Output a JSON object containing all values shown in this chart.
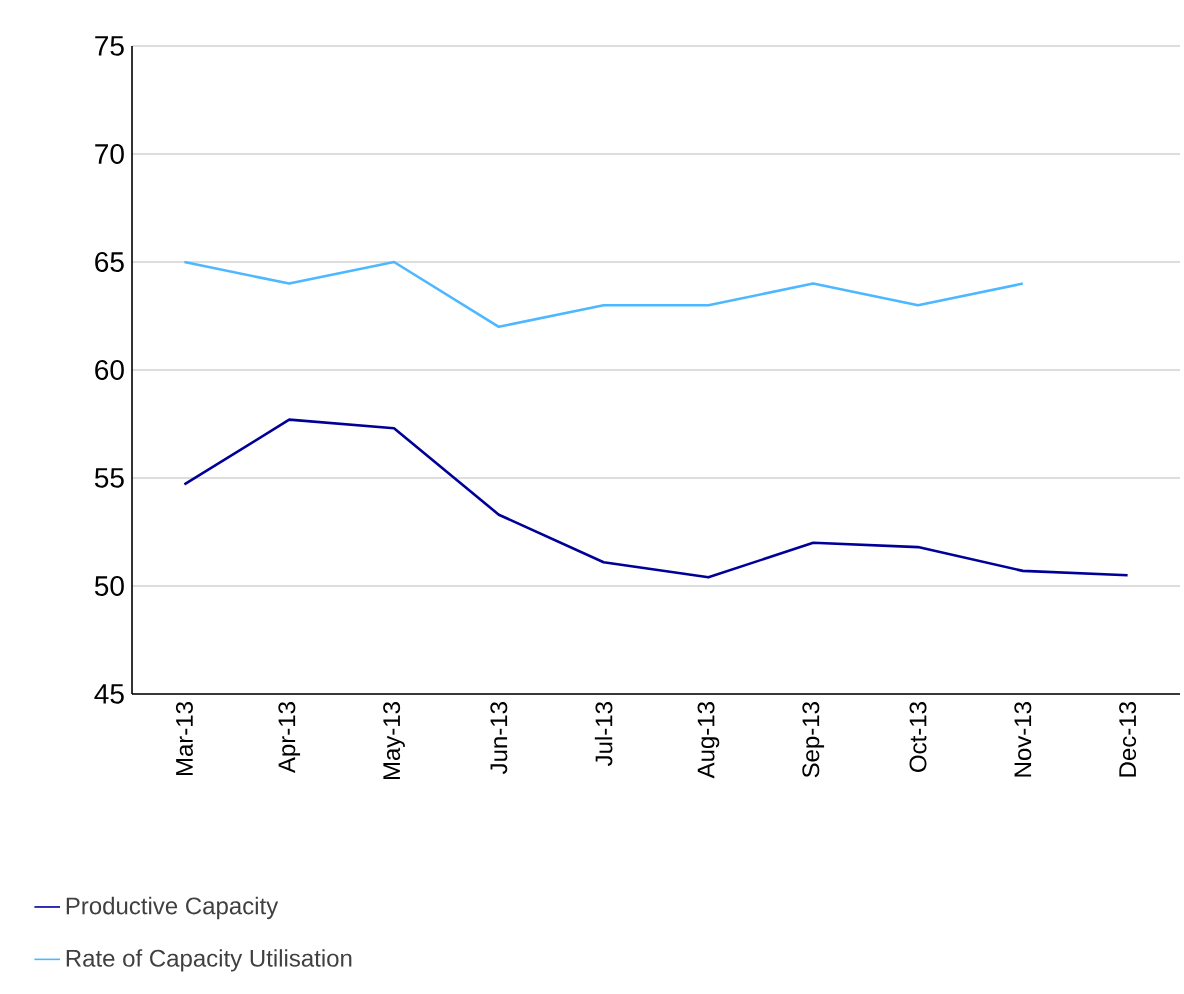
{
  "chart_data": {
    "type": "line",
    "categories": [
      "Mar-13",
      "Apr-13",
      "May-13",
      "Jun-13",
      "Jul-13",
      "Aug-13",
      "Sep-13",
      "Oct-13",
      "Nov-13",
      "Dec-13"
    ],
    "series": [
      {
        "name": "Productive Capacity",
        "color": "#000099",
        "values": [
          54.7,
          57.7,
          57.3,
          53.3,
          51.1,
          50.4,
          52.0,
          51.8,
          50.7,
          50.5
        ]
      },
      {
        "name": "Rate of Capacity Utilisation",
        "color": "#4db8ff",
        "values": [
          65,
          64,
          65,
          62,
          63,
          63,
          64,
          63,
          64,
          null
        ]
      }
    ],
    "ylim": [
      45,
      75
    ],
    "yticks": [
      45,
      50,
      55,
      60,
      65,
      70,
      75
    ],
    "grid": "y",
    "legend": "bottom left",
    "marker": "none",
    "line_style": "solid"
  }
}
